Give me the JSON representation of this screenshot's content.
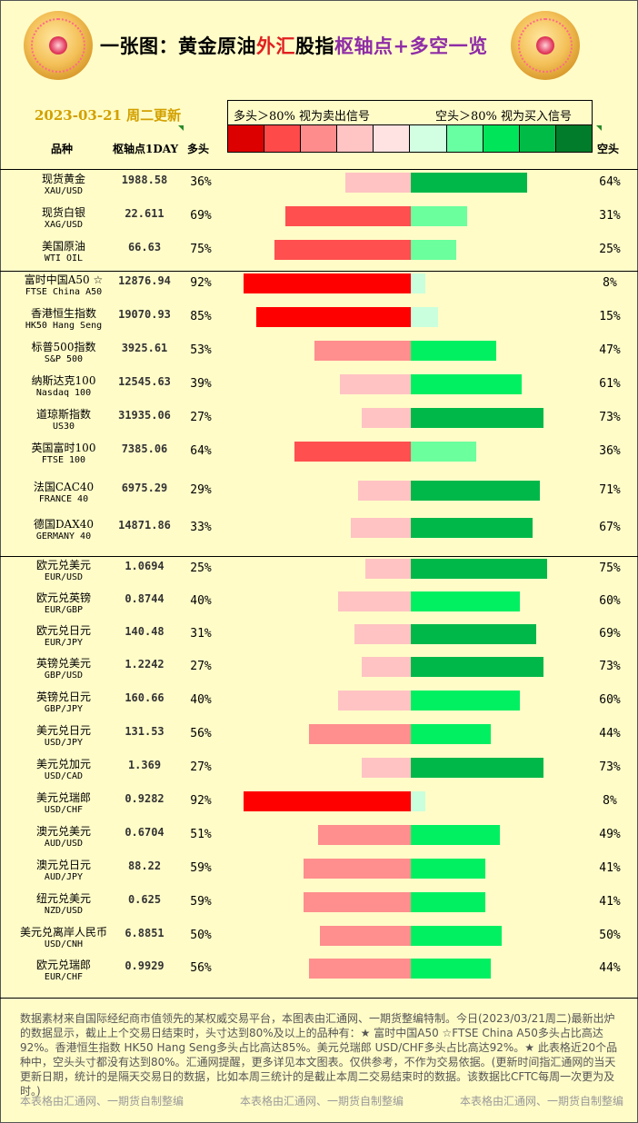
{
  "header": {
    "title_part1": "一张图：黄金原油",
    "title_part2": "外汇",
    "title_part3": "股指",
    "title_part4": "枢轴点",
    "title_part5": "+多空一览",
    "date": "2023-03-21 周二更新",
    "legend_long": "多头＞80% 视为卖出信号",
    "legend_short": "空头＞80% 视为买入信号"
  },
  "columns": {
    "name": "品种",
    "pivot": "枢轴点1DAY",
    "long": "多头",
    "short": "空头"
  },
  "colors": {
    "background": "#fffcc8",
    "legend_swatches": [
      "#dc0000",
      "#ff4a4a",
      "#ff8c8c",
      "#ffc4c4",
      "#ffe2e2",
      "#d2ffe2",
      "#68ffa2",
      "#00e45a",
      "#00bc46",
      "#007c2a"
    ],
    "long_strong": "#ff0000",
    "long_medium": "#ff4f4f",
    "long_light": "#ff8e8e",
    "long_faint": "#ffc3c3",
    "short_faint": "#c9ffdc",
    "short_light": "#6bff9e",
    "short_medium": "#00f062",
    "short_strong": "#00b84a"
  },
  "chart_data": {
    "type": "bar",
    "rows": [
      {
        "name": "现货黄金",
        "code": "XAU/USD",
        "pivot": "1988.58",
        "long": 36,
        "short": 64,
        "long_label": "36%",
        "short_label": "64%"
      },
      {
        "name": "现货白银",
        "code": "XAG/USD",
        "pivot": "22.611",
        "long": 69,
        "short": 31,
        "long_label": "69%",
        "short_label": "31%"
      },
      {
        "name": "美国原油",
        "code": "WTI OIL",
        "pivot": "66.63",
        "long": 75,
        "short": 25,
        "long_label": "75%",
        "short_label": "25%"
      },
      {
        "name": "富时中国A50 ☆",
        "code": "FTSE China A50",
        "pivot": "12876.94",
        "long": 92,
        "short": 8,
        "long_label": "92%",
        "short_label": "8%"
      },
      {
        "name": "香港恒生指数",
        "code": "HK50 Hang Seng",
        "pivot": "19070.93",
        "long": 85,
        "short": 15,
        "long_label": "85%",
        "short_label": "15%"
      },
      {
        "name": "标普500指数",
        "code": "S&P 500",
        "pivot": "3925.61",
        "long": 53,
        "short": 47,
        "long_label": "53%",
        "short_label": "47%"
      },
      {
        "name": "纳斯达克100",
        "code": "Nasdaq 100",
        "pivot": "12545.63",
        "long": 39,
        "short": 61,
        "long_label": "39%",
        "short_label": "61%"
      },
      {
        "name": "道琼斯指数",
        "code": "US30",
        "pivot": "31935.06",
        "long": 27,
        "short": 73,
        "long_label": "27%",
        "short_label": "73%"
      },
      {
        "name": "英国富时100",
        "code": "FTSE 100",
        "pivot": "7385.06",
        "long": 64,
        "short": 36,
        "long_label": "64%",
        "short_label": "36%"
      },
      {
        "name": "法国CAC40",
        "code": "FRANCE 40",
        "pivot": "6975.29",
        "long": 29,
        "short": 71,
        "long_label": "29%",
        "short_label": "71%"
      },
      {
        "name": "德国DAX40",
        "code": "GERMANY 40",
        "pivot": "14871.86",
        "long": 33,
        "short": 67,
        "long_label": "33%",
        "short_label": "67%"
      },
      {
        "name": "欧元兑美元",
        "code": "EUR/USD",
        "pivot": "1.0694",
        "long": 25,
        "short": 75,
        "long_label": "25%",
        "short_label": "75%"
      },
      {
        "name": "欧元兑英镑",
        "code": "EUR/GBP",
        "pivot": "0.8744",
        "long": 40,
        "short": 60,
        "long_label": "40%",
        "short_label": "60%"
      },
      {
        "name": "欧元兑日元",
        "code": "EUR/JPY",
        "pivot": "140.48",
        "long": 31,
        "short": 69,
        "long_label": "31%",
        "short_label": "69%"
      },
      {
        "name": "英镑兑美元",
        "code": "GBP/USD",
        "pivot": "1.2242",
        "long": 27,
        "short": 73,
        "long_label": "27%",
        "short_label": "73%"
      },
      {
        "name": "英镑兑日元",
        "code": "GBP/JPY",
        "pivot": "160.66",
        "long": 40,
        "short": 60,
        "long_label": "40%",
        "short_label": "60%"
      },
      {
        "name": "美元兑日元",
        "code": "USD/JPY",
        "pivot": "131.53",
        "long": 56,
        "short": 44,
        "long_label": "56%",
        "short_label": "44%"
      },
      {
        "name": "美元兑加元",
        "code": "USD/CAD",
        "pivot": "1.369",
        "long": 27,
        "short": 73,
        "long_label": "27%",
        "short_label": "73%"
      },
      {
        "name": "美元兑瑞郎",
        "code": "USD/CHF",
        "pivot": "0.9282",
        "long": 92,
        "short": 8,
        "long_label": "92%",
        "short_label": "8%"
      },
      {
        "name": "澳元兑美元",
        "code": "AUD/USD",
        "pivot": "0.6704",
        "long": 51,
        "short": 49,
        "long_label": "51%",
        "short_label": "49%"
      },
      {
        "name": "澳元兑日元",
        "code": "AUD/JPY",
        "pivot": "88.22",
        "long": 59,
        "short": 41,
        "long_label": "59%",
        "short_label": "41%"
      },
      {
        "name": "纽元兑美元",
        "code": "NZD/USD",
        "pivot": "0.625",
        "long": 59,
        "short": 41,
        "long_label": "59%",
        "short_label": "41%"
      },
      {
        "name": "美元兑离岸人民币",
        "code": "USD/CNH",
        "pivot": "6.8851",
        "long": 50,
        "short": 50,
        "long_label": "50%",
        "short_label": "50%"
      },
      {
        "name": "欧元兑瑞郎",
        "code": "EUR/CHF",
        "pivot": "0.9929",
        "long": 56,
        "short": 44,
        "long_label": "56%",
        "short_label": "44%"
      }
    ]
  },
  "footer": {
    "text": "数据素材来自国际经纪商市值领先的某权威交易平台，本图表由汇通网、一期货整编特制。今日(2023/03/21周二)最新出炉的数据显示，截止上个交易日结束时，头寸达到80%及以上的品种有：★ 富时中国A50 ☆FTSE China A50多头占比高达92%。香港恒生指数 HK50 Hang Seng多头占比高达85%。美元兑瑞郎 USD/CHF多头占比高达92%。★ 此表格近20个品种中，空头头寸都没有达到80%。汇通网提醒，更多详见本文图表。仅供参考，不作为交易依据。(更新时间指汇通网的当天更新日期，统计的是隔天交易日的数据，比如本周三统计的是截止本周二交易结束时的数据。该数据比CFTC每周一次更为及时。)",
    "credit": "本表格由汇通网、一期货自制整编"
  }
}
